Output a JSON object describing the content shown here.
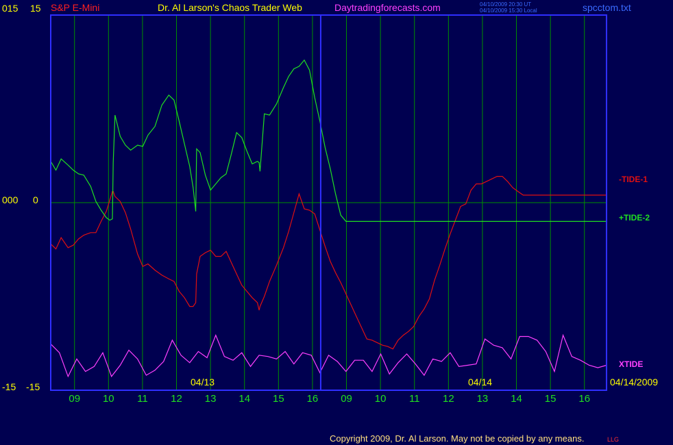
{
  "header": {
    "symbol": "S&P E-Mini",
    "title": "Dr. Al Larson's Chaos Trader Web",
    "site": "Daytradingforecasts.com",
    "stamp_ut": "04/10/2009 20:30 UT",
    "stamp_local": "04/10/2009 15:30 Local",
    "file": "spcctom.txt"
  },
  "left_axis": {
    "top_a": "015",
    "top_b": "15",
    "mid_a": "000",
    "mid_b": "0",
    "bot_a": "-15",
    "bot_b": "-15"
  },
  "date_labels": {
    "day1": "04/13",
    "day2": "04/14",
    "end": "04/14/2009"
  },
  "footer": {
    "copyright": "Copyright 2009, Dr. Al Larson. May not be copied by any means.",
    "tag": "LLG"
  },
  "colors": {
    "bg": "#000050",
    "frame": "#2f2fff",
    "grid": "#009000",
    "tide1": "#e01010",
    "tide2": "#20e020",
    "xtide": "#ff40ff",
    "yellow": "#ffff00",
    "gold": "#ffe080"
  },
  "chart_data": {
    "type": "line",
    "x_ticks": [
      "09",
      "10",
      "11",
      "12",
      "13",
      "14",
      "15",
      "16",
      "09",
      "10",
      "11",
      "12",
      "13",
      "14",
      "15",
      "16"
    ],
    "ylim": [
      -15,
      15
    ],
    "day_marker_x": 16,
    "series": [
      {
        "name": "-TIDE-1",
        "x": [
          0,
          0.3,
          0.6,
          1,
          1.3,
          1.6,
          1.9,
          2.3,
          2.6,
          2.9,
          3.2,
          3.4,
          3.55,
          3.6,
          3.7,
          4,
          4.3,
          4.6,
          5,
          5.3,
          5.6,
          6,
          6.4,
          6.8,
          7.1,
          7.4,
          7.7,
          8,
          8.2,
          8.35,
          8.4,
          8.6,
          8.9,
          9.2,
          9.5,
          9.8,
          10.1,
          10.4,
          10.7,
          11,
          11.3,
          11.6,
          11.9,
          12,
          12.05,
          12.3,
          12.6,
          13,
          13.4,
          13.7,
          14,
          14.3,
          14.6,
          14.9,
          15.2,
          15.5,
          15.8,
          16.1,
          16.4,
          16.7,
          17,
          17.3,
          17.6,
          17.9,
          18.2,
          18.5,
          18.8,
          19.1,
          19.4,
          19.7,
          20,
          20.3,
          20.6,
          20.9,
          21.2,
          21.5,
          21.8,
          22.1,
          22.4,
          22.7,
          23,
          23.3,
          23.6,
          23.9,
          24.2,
          24.5,
          24.8,
          25.1,
          25.4,
          25.7,
          26,
          26.3,
          26.6,
          26.9,
          27.2,
          27.5,
          27.8,
          28.1,
          28.4,
          28.7,
          29,
          29.3,
          29.6,
          29.9,
          30.2,
          30.5,
          30.8,
          31.1,
          31.4,
          31.7,
          32
        ],
        "values": [
          -3.3,
          -3.7,
          -2.8,
          -3.6,
          -3.4,
          -2.9,
          -2.6,
          -2.4,
          -2.4,
          -1.5,
          -0.7,
          0.2,
          0.9,
          0.9,
          0.5,
          0.1,
          -0.8,
          -2.1,
          -4.1,
          -5.1,
          -4.9,
          -5.4,
          -5.8,
          -6.1,
          -6.3,
          -7.1,
          -7.6,
          -8.3,
          -8.3,
          -8.0,
          -5.7,
          -4.3,
          -4.0,
          -3.8,
          -4.3,
          -4.3,
          -3.9,
          -4.8,
          -5.7,
          -6.6,
          -7.1,
          -7.6,
          -8.0,
          -8.6,
          -8.3,
          -7.5,
          -6.3,
          -5.0,
          -3.6,
          -2.3,
          -0.8,
          0.7,
          -0.5,
          -0.6,
          -0.9,
          -2.2,
          -3.5,
          -4.7,
          -5.6,
          -6.4,
          -7.3,
          -8.2,
          -9.1,
          -10.0,
          -10.9,
          -11.0,
          -11.2,
          -11.4,
          -11.5,
          -11.7,
          -11.0,
          -10.6,
          -10.3,
          -9.9,
          -9.1,
          -8.5,
          -7.7,
          -6.2,
          -5.0,
          -3.7,
          -2.5,
          -1.4,
          -0.3,
          -0.1,
          1.0,
          1.5,
          1.5,
          1.7,
          1.9,
          2.1,
          2.1,
          1.7,
          1.2,
          0.9,
          0.6,
          0.6,
          0.6,
          0.6,
          0.6,
          0.6,
          0.6,
          0.6,
          0.6,
          0.6,
          0.6,
          0.6,
          0.6,
          0.6,
          0.6,
          0.6,
          0.6
        ]
      },
      {
        "name": "+TIDE-2",
        "x": [
          0,
          0.3,
          0.6,
          1,
          1.3,
          1.6,
          1.9,
          2.3,
          2.6,
          2.9,
          3.2,
          3.4,
          3.55,
          3.6,
          3.7,
          4,
          4.3,
          4.6,
          5,
          5.3,
          5.6,
          6,
          6.4,
          6.8,
          7.1,
          7.4,
          7.7,
          8,
          8.2,
          8.35,
          8.4,
          8.6,
          8.9,
          9.2,
          9.5,
          9.8,
          10.1,
          10.4,
          10.7,
          11,
          11.3,
          11.6,
          11.9,
          12,
          12.05,
          12.3,
          12.6,
          13,
          13.4,
          13.7,
          14,
          14.3,
          14.6,
          14.9,
          15.2,
          15.5,
          15.8,
          16.1,
          16.4,
          16.7,
          17,
          17.3,
          17.6,
          17.9,
          18.2,
          18.5,
          18.8,
          19.1,
          19.4,
          19.7,
          20,
          20.3,
          20.6,
          20.9,
          21.2,
          21.5,
          21.8,
          22.1,
          22.4,
          22.7,
          23,
          23.3,
          23.6,
          23.9,
          24.2,
          24.5,
          24.8,
          25.1,
          25.4,
          25.7,
          26,
          26.3,
          26.6,
          26.9,
          27.2,
          27.5,
          27.8,
          28.1,
          28.4,
          28.7,
          29,
          29.3,
          29.6,
          29.9,
          30.2,
          30.5,
          30.8,
          31.1,
          31.4,
          31.7,
          32
        ],
        "values": [
          3.3,
          2.6,
          3.5,
          3.0,
          2.6,
          2.3,
          2.2,
          1.3,
          0.1,
          -0.6,
          -1.2,
          -1.4,
          -1.3,
          3.2,
          7.0,
          5.3,
          4.6,
          4.2,
          4.6,
          4.5,
          5.4,
          6.1,
          7.8,
          8.6,
          8.2,
          6.5,
          4.7,
          2.9,
          1.2,
          -0.7,
          4.3,
          4.0,
          2.2,
          1.0,
          1.5,
          2.0,
          2.3,
          3.9,
          5.6,
          5.2,
          4.1,
          3.1,
          3.3,
          3.2,
          2.5,
          7.1,
          7.0,
          7.9,
          9.2,
          10.1,
          10.7,
          10.9,
          11.4,
          10.6,
          8.4,
          6.5,
          4.4,
          2.7,
          0.7,
          -1.0,
          -1.5,
          -1.5,
          -1.5,
          -1.5,
          -1.5,
          -1.5,
          -1.5,
          -1.5,
          -1.5,
          -1.5,
          -1.5,
          -1.5,
          -1.5,
          -1.5,
          -1.5,
          -1.5,
          -1.5,
          -1.5,
          -1.5,
          -1.5,
          -1.5,
          -1.5,
          -1.5,
          -1.5,
          -1.5,
          -1.5,
          -1.5,
          -1.5,
          -1.5,
          -1.5,
          -1.5,
          -1.5,
          -1.5,
          -1.5,
          -1.5,
          -1.5,
          -1.5,
          -1.5,
          -1.5,
          -1.5,
          -1.5,
          -1.5,
          -1.5,
          -1.5,
          -1.5,
          -1.5,
          -1.5,
          -1.5,
          -1.5,
          -1.5,
          -1.5
        ]
      },
      {
        "name": "XTIDE",
        "x": [
          0,
          0.25,
          0.5,
          0.75,
          1,
          1.25,
          1.5,
          1.75,
          2,
          2.25,
          2.5,
          2.75,
          3,
          3.25,
          3.5,
          3.75,
          4,
          4.25,
          4.5,
          4.75,
          5,
          5.25,
          5.5,
          5.75,
          6,
          6.25,
          6.5,
          6.75,
          7,
          7.25,
          7.5,
          7.75,
          8,
          8.25,
          8.5,
          8.75,
          9,
          9.25,
          9.5,
          9.75,
          10,
          10.25,
          10.5,
          10.75,
          11,
          11.25,
          11.5,
          11.75,
          12,
          12.25,
          12.5,
          12.75,
          13,
          13.25,
          13.5,
          13.75,
          14,
          14.25,
          14.5,
          14.75,
          15,
          15.25,
          15.5,
          15.75,
          16
        ],
        "values": [
          -11.3,
          -12.0,
          -13.9,
          -12.5,
          -13.5,
          -13.1,
          -12.0,
          -13.9,
          -13.0,
          -11.8,
          -12.5,
          -13.8,
          -13.4,
          -12.7,
          -11.0,
          -12.2,
          -12.8,
          -11.9,
          -12.4,
          -10.6,
          -12.3,
          -12.6,
          -12.0,
          -13.1,
          -12.2,
          -12.3,
          -12.5,
          -11.9,
          -12.9,
          -12.0,
          -12.2,
          -13.6,
          -12.2,
          -12.7,
          -13.5,
          -12.6,
          -12.6,
          -13.5,
          -12.1,
          -13.7,
          -12.8,
          -12.1,
          -12.9,
          -13.8,
          -12.5,
          -12.7,
          -12.0,
          -13.1,
          -13.0,
          -12.9,
          -10.9,
          -11.4,
          -11.6,
          -12.5,
          -10.7,
          -10.7,
          -11.0,
          -11.9,
          -13.5,
          -10.6,
          -12.3,
          -12.6,
          -13.0,
          -13.2,
          -13.0
        ]
      }
    ]
  }
}
